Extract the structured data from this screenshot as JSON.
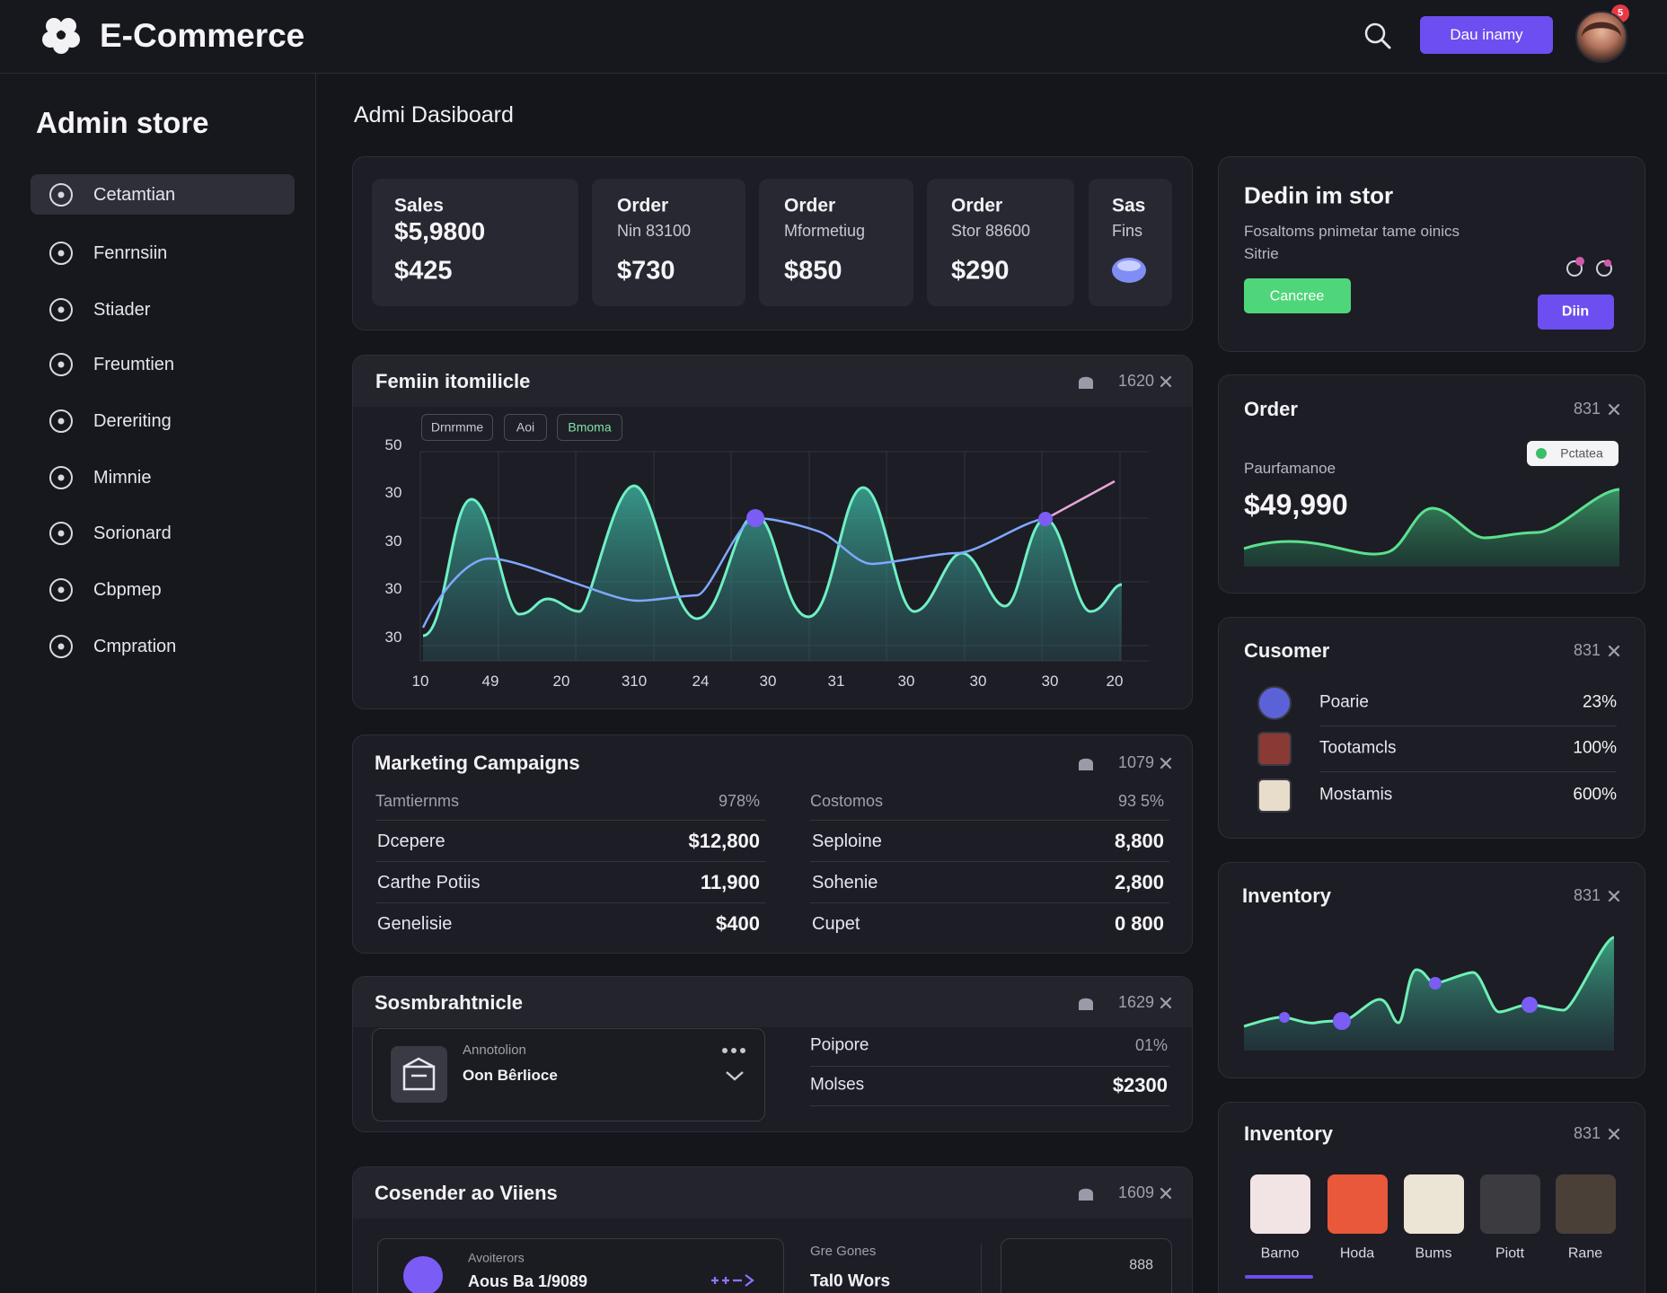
{
  "header": {
    "brand": "E-Commerce",
    "button": "Dau inamy",
    "badge": "5"
  },
  "sidebar": {
    "title": "Admin store",
    "items": [
      "Cetamtian",
      "Fenrnsiin",
      "Stiader",
      "Freumtien",
      "Dereriting",
      "Mimnie",
      "Sorionard",
      "Cbpmep",
      "Cmpration"
    ]
  },
  "page_title": "Admi Dasiboard",
  "stats": [
    {
      "label": "Sales",
      "sub": "$5,9800",
      "value": "$425"
    },
    {
      "label": "Order",
      "sub": "Nin 83100",
      "value": "$730"
    },
    {
      "label": "Order",
      "sub": "Mformetiug",
      "value": "$850"
    },
    {
      "label": "Order",
      "sub": "Stor 88600",
      "value": "$290"
    },
    {
      "label": "Sas",
      "sub": "Fins"
    }
  ],
  "trend": {
    "title": "Femiin itomilicle",
    "meta": "1620",
    "chips": [
      "Drnrmme",
      "Aoi",
      "Bmoma"
    ],
    "y_labels": [
      "50",
      "30",
      "30",
      "30",
      "30"
    ],
    "x_labels": [
      "10",
      "49",
      "20",
      "310",
      "24",
      "30",
      "31",
      "30",
      "30",
      "30",
      "20"
    ]
  },
  "marketing": {
    "title": "Marketing Campaigns",
    "meta": "1079",
    "left": {
      "header": [
        "Tamtiernms",
        "978%"
      ],
      "rows": [
        [
          "Dcepere",
          "$12,800"
        ],
        [
          "Carthe Potiis",
          "11,900"
        ],
        [
          "Genelisie",
          "$400"
        ]
      ]
    },
    "right": {
      "header": [
        "Costomos",
        "93 5%"
      ],
      "rows": [
        [
          "Seploine",
          "8,800"
        ],
        [
          "Sohenie",
          "2,800"
        ],
        [
          "Cupet",
          "0 800"
        ]
      ]
    }
  },
  "summary": {
    "title": "Sosmbrahtnicle",
    "meta": "1629",
    "item": {
      "kicker": "Annotolion",
      "name": "Oon Bêrlioce"
    },
    "rows": [
      [
        "Poipore",
        "01%"
      ],
      [
        "Molses",
        "$2300"
      ]
    ]
  },
  "consider": {
    "title": "Cosender ao Viiens",
    "meta": "1609",
    "item": {
      "kicker": "Avoiterors",
      "name": "Aous Ba 1/9089"
    },
    "stat": {
      "kicker": "Gre Gones",
      "name": "Tal0 Wors"
    },
    "box": "888"
  },
  "promo": {
    "title": "Dedin im stor",
    "text": [
      "Fosaltoms pnimetar tame oinics",
      "Sitrie"
    ],
    "primary": "Cancree",
    "secondary": "Diin"
  },
  "order": {
    "title": "Order",
    "meta": "831",
    "badge": "Pctatea",
    "label": "Paurfamanoe",
    "value": "$49,990"
  },
  "customer": {
    "title": "Cusomer",
    "meta": "831",
    "rows": [
      [
        "Poarie",
        "23%"
      ],
      [
        "Tootamcls",
        "100%"
      ],
      [
        "Mostamis",
        "600%"
      ]
    ]
  },
  "inventory_trend": {
    "title": "Inventory",
    "meta": "831"
  },
  "inventory": {
    "title": "Inventory",
    "meta": "831",
    "items": [
      "Barno",
      "Hoda",
      "Bums",
      "Piott",
      "Rane"
    ]
  }
}
